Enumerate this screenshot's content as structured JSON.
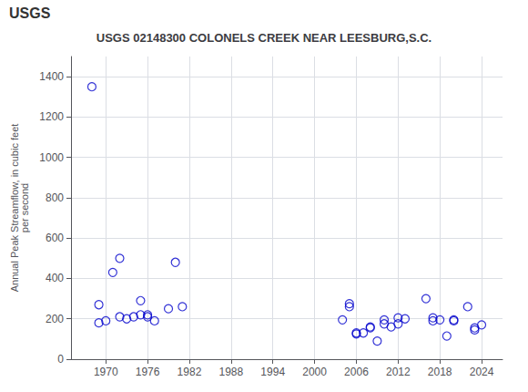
{
  "chart_data": {
    "type": "scatter",
    "title": "USGS 02148300 COLONELS CREEK NEAR LEESBURG,S.C.",
    "ylabel": "Annual Peak Streamflow, in cubic feet\nper second",
    "annotations": [
      "USGS"
    ],
    "x": [
      1968,
      1969,
      1969,
      1970,
      1971,
      1972,
      1972,
      1973,
      1974,
      1975,
      1975,
      1976,
      1976,
      1977,
      1979,
      1980,
      1981,
      2004,
      2005,
      2005,
      2006,
      2006,
      2007,
      2008,
      2008,
      2009,
      2010,
      2010,
      2011,
      2012,
      2012,
      2013,
      2016,
      2017,
      2017,
      2018,
      2019,
      2020,
      2020,
      2022,
      2023,
      2023,
      2024
    ],
    "values": [
      1350,
      180,
      270,
      190,
      430,
      210,
      500,
      200,
      210,
      220,
      290,
      210,
      220,
      190,
      250,
      480,
      260,
      195,
      260,
      275,
      125,
      130,
      130,
      160,
      155,
      90,
      175,
      195,
      160,
      205,
      175,
      200,
      300,
      205,
      190,
      195,
      115,
      195,
      190,
      260,
      155,
      145,
      170
    ],
    "color": "#0000cc",
    "marker": "circle",
    "xlim": [
      1965,
      2027
    ],
    "xticks": [
      1970,
      1976,
      1982,
      1988,
      1994,
      2000,
      2006,
      2012,
      2018,
      2024
    ],
    "ylim": [
      0,
      1500
    ],
    "yticks": [
      0,
      200,
      400,
      600,
      800,
      1000,
      1200,
      1400
    ],
    "grid": true
  }
}
